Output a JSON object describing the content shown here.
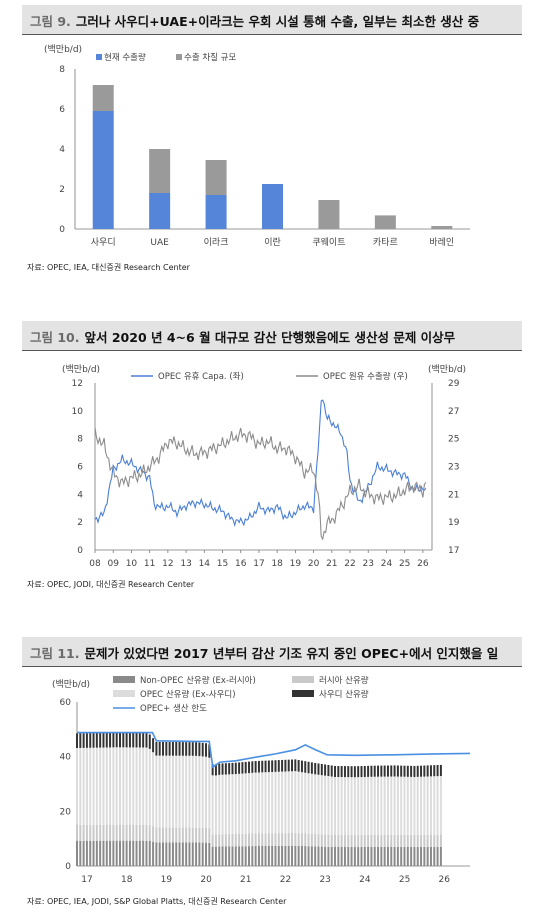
{
  "figure1": {
    "number": "그림 9.",
    "title": "그러나 사우디+UAE+이라크는 우회 시설 통해 수출, 일부는 최소한 생산 중",
    "source": "자료: OPEC, IEA, 대신증권 Research Center"
  },
  "figure2": {
    "number": "그림 10.",
    "title": "앞서 2020 년 4~6 월 대규모 감산 단행했음에도 생산성 문제 이상무",
    "source": "자료: OPEC, JODI, 대신증권 Research Center"
  },
  "figure3": {
    "number": "그림 11.",
    "title": "문제가 있었다면 2017 년부터 감산 기조 유지 중인 OPEC+에서 인지했을 일",
    "source": "자료: OPEC, IEA, JODI, S&P Global Platts, 대신증권 Research Center"
  },
  "chart_data": [
    {
      "type": "bar",
      "stacked": true,
      "ylabel": "(백만b/d)",
      "ylim": [
        0,
        8
      ],
      "yticks": [
        0,
        2,
        4,
        6,
        8
      ],
      "legend_position": "top-left",
      "categories": [
        "사우디",
        "UAE",
        "이라크",
        "이란",
        "쿠웨이트",
        "카타르",
        "바레인"
      ],
      "series": [
        {
          "name": "현재 수출량",
          "color": "#5585d8",
          "values": [
            5.9,
            1.8,
            1.7,
            2.25,
            0,
            0,
            0
          ]
        },
        {
          "name": "수출 차질 규모",
          "color": "#9a9a9a",
          "values": [
            1.3,
            2.2,
            1.75,
            0,
            1.45,
            0.68,
            0.15
          ]
        }
      ]
    },
    {
      "type": "line",
      "ylabel_left": "(백만b/d)",
      "ylabel_right": "(백만b/d)",
      "ylim_left": [
        0,
        12
      ],
      "yticks_left": [
        0,
        2,
        4,
        6,
        8,
        10,
        12
      ],
      "ylim_right": [
        17,
        29
      ],
      "yticks_right": [
        17,
        19,
        21,
        23,
        25,
        27,
        29
      ],
      "xlim": [
        2008,
        2026.5
      ],
      "xticks": [
        "08",
        "09",
        "10",
        "11",
        "12",
        "13",
        "14",
        "15",
        "16",
        "17",
        "18",
        "19",
        "20",
        "21",
        "22",
        "23",
        "24",
        "25",
        "26"
      ],
      "legend_position": "top",
      "series": [
        {
          "name": "OPEC 유휴 Capa. (좌)",
          "axis": "left",
          "color": "#4a7fd6",
          "points": [
            [
              2008.0,
              2.2
            ],
            [
              2008.5,
              2.6
            ],
            [
              2009.0,
              5.8
            ],
            [
              2009.5,
              6.5
            ],
            [
              2010.0,
              6.2
            ],
            [
              2010.5,
              5.7
            ],
            [
              2011.0,
              5.2
            ],
            [
              2011.25,
              3.3
            ],
            [
              2011.75,
              3.0
            ],
            [
              2012.0,
              3.2
            ],
            [
              2012.5,
              2.7
            ],
            [
              2013.0,
              3.2
            ],
            [
              2013.5,
              3.4
            ],
            [
              2014.0,
              3.3
            ],
            [
              2014.5,
              3.0
            ],
            [
              2015.0,
              2.8
            ],
            [
              2015.5,
              2.2
            ],
            [
              2016.0,
              2.0
            ],
            [
              2016.5,
              2.3
            ],
            [
              2017.0,
              3.1
            ],
            [
              2017.5,
              2.8
            ],
            [
              2018.0,
              3.1
            ],
            [
              2018.5,
              2.3
            ],
            [
              2019.0,
              2.7
            ],
            [
              2019.5,
              3.2
            ],
            [
              2020.0,
              3.0
            ],
            [
              2020.3,
              8.0
            ],
            [
              2020.45,
              11.5
            ],
            [
              2020.7,
              9.5
            ],
            [
              2021.0,
              9.2
            ],
            [
              2021.5,
              8.4
            ],
            [
              2021.8,
              7.2
            ],
            [
              2022.0,
              5.0
            ],
            [
              2022.5,
              3.4
            ],
            [
              2023.0,
              4.5
            ],
            [
              2023.5,
              6.0
            ],
            [
              2024.0,
              5.8
            ],
            [
              2024.5,
              5.5
            ],
            [
              2025.0,
              5.4
            ],
            [
              2025.5,
              4.3
            ],
            [
              2026.0,
              4.5
            ],
            [
              2026.2,
              4.0
            ]
          ]
        },
        {
          "name": "OPEC 원유 수출량 (우)",
          "axis": "right",
          "color": "#8c8c8c",
          "points": [
            [
              2008.0,
              25.3
            ],
            [
              2008.5,
              24.5
            ],
            [
              2009.0,
              22.5
            ],
            [
              2009.5,
              21.8
            ],
            [
              2010.0,
              22.2
            ],
            [
              2010.5,
              22.4
            ],
            [
              2011.0,
              23.0
            ],
            [
              2011.5,
              23.7
            ],
            [
              2012.0,
              24.8
            ],
            [
              2012.5,
              24.7
            ],
            [
              2013.0,
              24.2
            ],
            [
              2013.5,
              23.9
            ],
            [
              2014.0,
              24.0
            ],
            [
              2014.5,
              24.3
            ],
            [
              2015.0,
              24.6
            ],
            [
              2015.5,
              25.0
            ],
            [
              2016.0,
              25.3
            ],
            [
              2016.5,
              25.2
            ],
            [
              2017.0,
              24.6
            ],
            [
              2017.5,
              24.8
            ],
            [
              2018.0,
              24.3
            ],
            [
              2018.5,
              24.3
            ],
            [
              2019.0,
              23.7
            ],
            [
              2019.5,
              22.6
            ],
            [
              2020.0,
              22.8
            ],
            [
              2020.25,
              21.0
            ],
            [
              2020.45,
              17.6
            ],
            [
              2020.7,
              18.9
            ],
            [
              2021.0,
              19.1
            ],
            [
              2021.5,
              20.1
            ],
            [
              2022.0,
              21.2
            ],
            [
              2022.5,
              21.6
            ],
            [
              2023.0,
              21.0
            ],
            [
              2023.5,
              20.7
            ],
            [
              2024.0,
              20.8
            ],
            [
              2024.5,
              20.9
            ],
            [
              2025.0,
              21.3
            ],
            [
              2025.5,
              21.6
            ],
            [
              2026.0,
              21.3
            ],
            [
              2026.2,
              21.8
            ]
          ]
        }
      ]
    },
    {
      "type": "bar",
      "stacked": true,
      "ylabel": "(백만b/d)",
      "ylim": [
        0,
        60
      ],
      "yticks": [
        0,
        20,
        40,
        60
      ],
      "xlim": [
        2017,
        2026.9
      ],
      "xticks": [
        "17",
        "18",
        "19",
        "20",
        "21",
        "22",
        "23",
        "24",
        "25",
        "26"
      ],
      "legend_position": "top",
      "series": [
        {
          "name": "Non-OPEC 산유량 (Ex-러시아)",
          "color": "#8a8a8a"
        },
        {
          "name": "러시아 산유량",
          "color": "#c9c9c9"
        },
        {
          "name": "OPEC 산유량 (Ex-사우디)",
          "color": "#dcdcdc"
        },
        {
          "name": "사우디 산유량",
          "color": "#333333"
        },
        {
          "name": "OPEC+ 생산 한도",
          "color": "#4a90e2",
          "type": "line",
          "points": [
            [
              2017.0,
              48.8
            ],
            [
              2018.0,
              48.8
            ],
            [
              2018.9,
              48.8
            ],
            [
              2019.0,
              45.8
            ],
            [
              2020.0,
              45.6
            ],
            [
              2020.33,
              45.6
            ],
            [
              2020.42,
              36.2
            ],
            [
              2020.6,
              38.0
            ],
            [
              2021.0,
              38.5
            ],
            [
              2021.5,
              39.8
            ],
            [
              2022.0,
              41.0
            ],
            [
              2022.5,
              42.5
            ],
            [
              2022.75,
              44.3
            ],
            [
              2023.0,
              42.6
            ],
            [
              2023.3,
              40.7
            ],
            [
              2024.0,
              40.5
            ],
            [
              2025.0,
              40.7
            ],
            [
              2026.0,
              41.0
            ],
            [
              2026.9,
              41.2
            ]
          ]
        }
      ],
      "total_bars": [
        [
          2017.0,
          48.5
        ],
        [
          2018.0,
          48.8
        ],
        [
          2018.8,
          48.7
        ],
        [
          2019.0,
          45.4
        ],
        [
          2020.0,
          45.3
        ],
        [
          2020.33,
          44.8
        ],
        [
          2020.42,
          37.0
        ],
        [
          2020.6,
          37.5
        ],
        [
          2021.0,
          37.8
        ],
        [
          2021.5,
          38.4
        ],
        [
          2022.0,
          38.7
        ],
        [
          2022.5,
          39.0
        ],
        [
          2023.0,
          37.7
        ],
        [
          2023.5,
          36.6
        ],
        [
          2024.0,
          36.5
        ],
        [
          2024.5,
          36.7
        ],
        [
          2025.0,
          36.8
        ],
        [
          2025.5,
          36.6
        ],
        [
          2026.0,
          36.9
        ],
        [
          2026.2,
          37.0
        ]
      ]
    }
  ]
}
